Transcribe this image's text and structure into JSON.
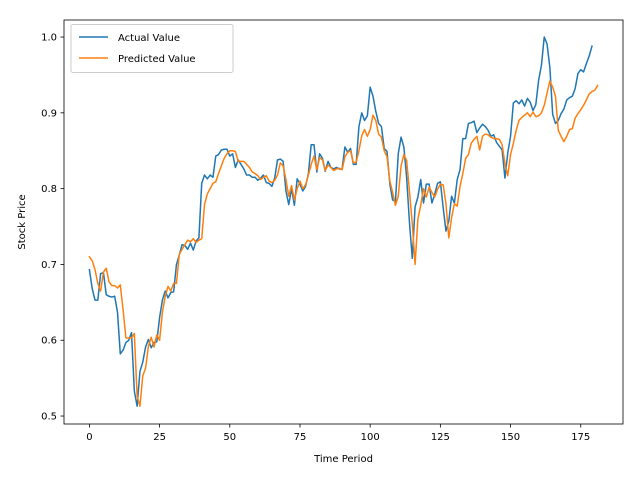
{
  "chart_data": {
    "type": "line",
    "title": "",
    "xlabel": "Time Period",
    "ylabel": "Stock Price",
    "xlim": [
      -9.05,
      190.05
    ],
    "ylim": [
      0.4895,
      1.0225
    ],
    "xticks": [
      0,
      25,
      50,
      75,
      100,
      125,
      150,
      175
    ],
    "yticks": [
      0.5,
      0.6,
      0.7,
      0.8,
      0.9,
      1.0
    ],
    "ytick_labels": [
      "0.5",
      "0.6",
      "0.7",
      "0.8",
      "0.9",
      "1.0"
    ],
    "grid": false,
    "legend_position": "upper-left",
    "series": [
      {
        "name": "Actual Value",
        "color": "#1f77b4",
        "x_start": 0,
        "values": [
          0.693,
          0.668,
          0.653,
          0.653,
          0.688,
          0.689,
          0.66,
          0.658,
          0.657,
          0.658,
          0.637,
          0.582,
          0.587,
          0.597,
          0.6,
          0.61,
          0.533,
          0.513,
          0.559,
          0.571,
          0.591,
          0.601,
          0.59,
          0.597,
          0.598,
          0.63,
          0.653,
          0.665,
          0.656,
          0.663,
          0.664,
          0.7,
          0.712,
          0.726,
          0.725,
          0.72,
          0.728,
          0.719,
          0.731,
          0.735,
          0.807,
          0.818,
          0.813,
          0.818,
          0.815,
          0.843,
          0.845,
          0.851,
          0.852,
          0.852,
          0.843,
          0.846,
          0.828,
          0.838,
          0.832,
          0.826,
          0.818,
          0.818,
          0.815,
          0.815,
          0.811,
          0.814,
          0.818,
          0.808,
          0.807,
          0.803,
          0.814,
          0.838,
          0.839,
          0.836,
          0.797,
          0.779,
          0.8,
          0.778,
          0.813,
          0.806,
          0.797,
          0.803,
          0.82,
          0.858,
          0.858,
          0.822,
          0.846,
          0.84,
          0.823,
          0.836,
          0.828,
          0.826,
          0.828,
          0.826,
          0.826,
          0.855,
          0.848,
          0.853,
          0.832,
          0.832,
          0.882,
          0.9,
          0.89,
          0.896,
          0.934,
          0.922,
          0.902,
          0.886,
          0.882,
          0.853,
          0.849,
          0.806,
          0.785,
          0.783,
          0.846,
          0.868,
          0.855,
          0.814,
          0.755,
          0.708,
          0.776,
          0.789,
          0.812,
          0.781,
          0.806,
          0.806,
          0.781,
          0.793,
          0.807,
          0.809,
          0.775,
          0.744,
          0.757,
          0.79,
          0.781,
          0.812,
          0.825,
          0.866,
          0.866,
          0.886,
          0.887,
          0.889,
          0.874,
          0.88,
          0.885,
          0.882,
          0.877,
          0.869,
          0.871,
          0.861,
          0.856,
          0.851,
          0.814,
          0.847,
          0.869,
          0.913,
          0.916,
          0.912,
          0.917,
          0.909,
          0.919,
          0.914,
          0.903,
          0.911,
          0.943,
          0.963,
          1.0,
          0.991,
          0.96,
          0.898,
          0.886,
          0.89,
          0.899,
          0.905,
          0.917,
          0.92,
          0.922,
          0.932,
          0.952,
          0.957,
          0.954,
          0.965,
          0.975,
          0.988
        ]
      },
      {
        "name": "Predicted Value",
        "color": "#ff7f0e",
        "x_start": 0,
        "values": [
          0.71,
          0.705,
          0.693,
          0.675,
          0.665,
          0.69,
          0.695,
          0.677,
          0.672,
          0.672,
          0.669,
          0.673,
          0.64,
          0.603,
          0.603,
          0.603,
          0.609,
          0.526,
          0.513,
          0.553,
          0.563,
          0.592,
          0.604,
          0.591,
          0.607,
          0.6,
          0.637,
          0.658,
          0.671,
          0.665,
          0.675,
          0.675,
          0.713,
          0.72,
          0.726,
          0.732,
          0.73,
          0.734,
          0.729,
          0.732,
          0.734,
          0.779,
          0.793,
          0.8,
          0.807,
          0.809,
          0.82,
          0.83,
          0.84,
          0.846,
          0.85,
          0.85,
          0.849,
          0.836,
          0.836,
          0.836,
          0.832,
          0.828,
          0.822,
          0.82,
          0.817,
          0.812,
          0.815,
          0.817,
          0.81,
          0.808,
          0.811,
          0.818,
          0.834,
          0.83,
          0.812,
          0.79,
          0.804,
          0.785,
          0.8,
          0.81,
          0.8,
          0.805,
          0.818,
          0.832,
          0.843,
          0.825,
          0.841,
          0.838,
          0.824,
          0.831,
          0.828,
          0.824,
          0.826,
          0.827,
          0.825,
          0.842,
          0.848,
          0.85,
          0.834,
          0.835,
          0.85,
          0.87,
          0.878,
          0.869,
          0.878,
          0.897,
          0.89,
          0.872,
          0.868,
          0.85,
          0.842,
          0.81,
          0.795,
          0.778,
          0.79,
          0.83,
          0.845,
          0.837,
          0.796,
          0.754,
          0.7,
          0.76,
          0.778,
          0.8,
          0.789,
          0.802,
          0.795,
          0.789,
          0.799,
          0.806,
          0.805,
          0.78,
          0.735,
          0.762,
          0.78,
          0.777,
          0.803,
          0.82,
          0.84,
          0.845,
          0.86,
          0.865,
          0.869,
          0.851,
          0.869,
          0.872,
          0.871,
          0.868,
          0.866,
          0.866,
          0.865,
          0.858,
          0.833,
          0.817,
          0.845,
          0.86,
          0.877,
          0.89,
          0.894,
          0.897,
          0.9,
          0.895,
          0.901,
          0.895,
          0.896,
          0.9,
          0.91,
          0.926,
          0.942,
          0.934,
          0.922,
          0.877,
          0.869,
          0.862,
          0.869,
          0.878,
          0.879,
          0.893,
          0.899,
          0.904,
          0.91,
          0.917,
          0.925,
          0.928,
          0.93,
          0.936
        ]
      }
    ]
  }
}
